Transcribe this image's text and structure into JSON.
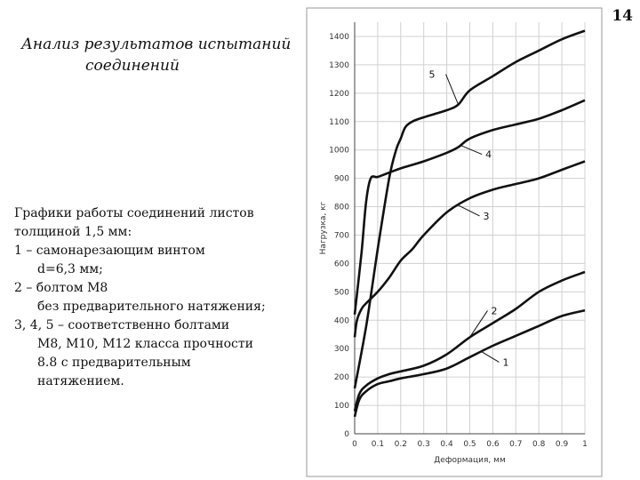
{
  "slide_number": "14",
  "title": {
    "line1": "Анализ результатов испытаний",
    "line2": "соединений"
  },
  "caption": {
    "line1": "Графики работы соединений листов",
    "line2": "толщиной 1,5 мм:",
    "line3": "1 – самонарезающим винтом",
    "line4": "d=6,3 мм;",
    "line5": "2 – болтом М8",
    "line6": "без предварительного натяжения;",
    "line7": "3, 4, 5 – соответственно болтами",
    "line8": "М8, М10, М12 класса прочности",
    "line9": "8.8 с предварительным",
    "line10": "натяжением."
  },
  "chart_data": {
    "type": "line",
    "xlabel": "Деформация, мм",
    "ylabel": "Нагрузка, кг",
    "xlim": [
      0,
      1
    ],
    "ylim": [
      0,
      1450
    ],
    "x_ticks": [
      "0",
      "0.1",
      "0.2",
      "0.3",
      "0.4",
      "0.5",
      "0.6",
      "0.7",
      "0.8",
      "0.9",
      "1"
    ],
    "y_ticks": [
      "0",
      "100",
      "200",
      "300",
      "400",
      "500",
      "600",
      "700",
      "800",
      "900",
      "1000",
      "1100",
      "1200",
      "1300",
      "1400"
    ],
    "grid": true,
    "series": [
      {
        "name": "1",
        "x": [
          0,
          0.02,
          0.05,
          0.1,
          0.15,
          0.2,
          0.3,
          0.4,
          0.5,
          0.6,
          0.7,
          0.8,
          0.9,
          1.0
        ],
        "y": [
          60,
          120,
          150,
          175,
          185,
          195,
          210,
          230,
          270,
          310,
          345,
          380,
          415,
          435
        ]
      },
      {
        "name": "2",
        "x": [
          0,
          0.02,
          0.05,
          0.1,
          0.15,
          0.2,
          0.3,
          0.4,
          0.5,
          0.6,
          0.7,
          0.8,
          0.9,
          1.0
        ],
        "y": [
          80,
          140,
          170,
          195,
          210,
          220,
          240,
          280,
          340,
          390,
          440,
          500,
          540,
          570
        ]
      },
      {
        "name": "3",
        "x": [
          0,
          0.01,
          0.03,
          0.05,
          0.1,
          0.15,
          0.2,
          0.25,
          0.3,
          0.4,
          0.5,
          0.6,
          0.7,
          0.8,
          0.9,
          1.0
        ],
        "y": [
          340,
          400,
          440,
          460,
          500,
          550,
          610,
          650,
          700,
          780,
          830,
          860,
          880,
          900,
          930,
          960
        ]
      },
      {
        "name": "4",
        "x": [
          0,
          0.03,
          0.05,
          0.07,
          0.1,
          0.15,
          0.2,
          0.3,
          0.4,
          0.45,
          0.5,
          0.6,
          0.7,
          0.8,
          0.9,
          1.0
        ],
        "y": [
          420,
          640,
          820,
          900,
          905,
          920,
          935,
          960,
          990,
          1010,
          1040,
          1070,
          1090,
          1110,
          1140,
          1175
        ]
      },
      {
        "name": "5",
        "x": [
          0,
          0.05,
          0.1,
          0.15,
          0.18,
          0.2,
          0.22,
          0.25,
          0.3,
          0.4,
          0.45,
          0.5,
          0.6,
          0.7,
          0.8,
          0.9,
          1.0
        ],
        "y": [
          160,
          380,
          650,
          900,
          1000,
          1040,
          1080,
          1100,
          1115,
          1140,
          1160,
          1210,
          1260,
          1310,
          1350,
          1390,
          1420
        ]
      }
    ]
  }
}
